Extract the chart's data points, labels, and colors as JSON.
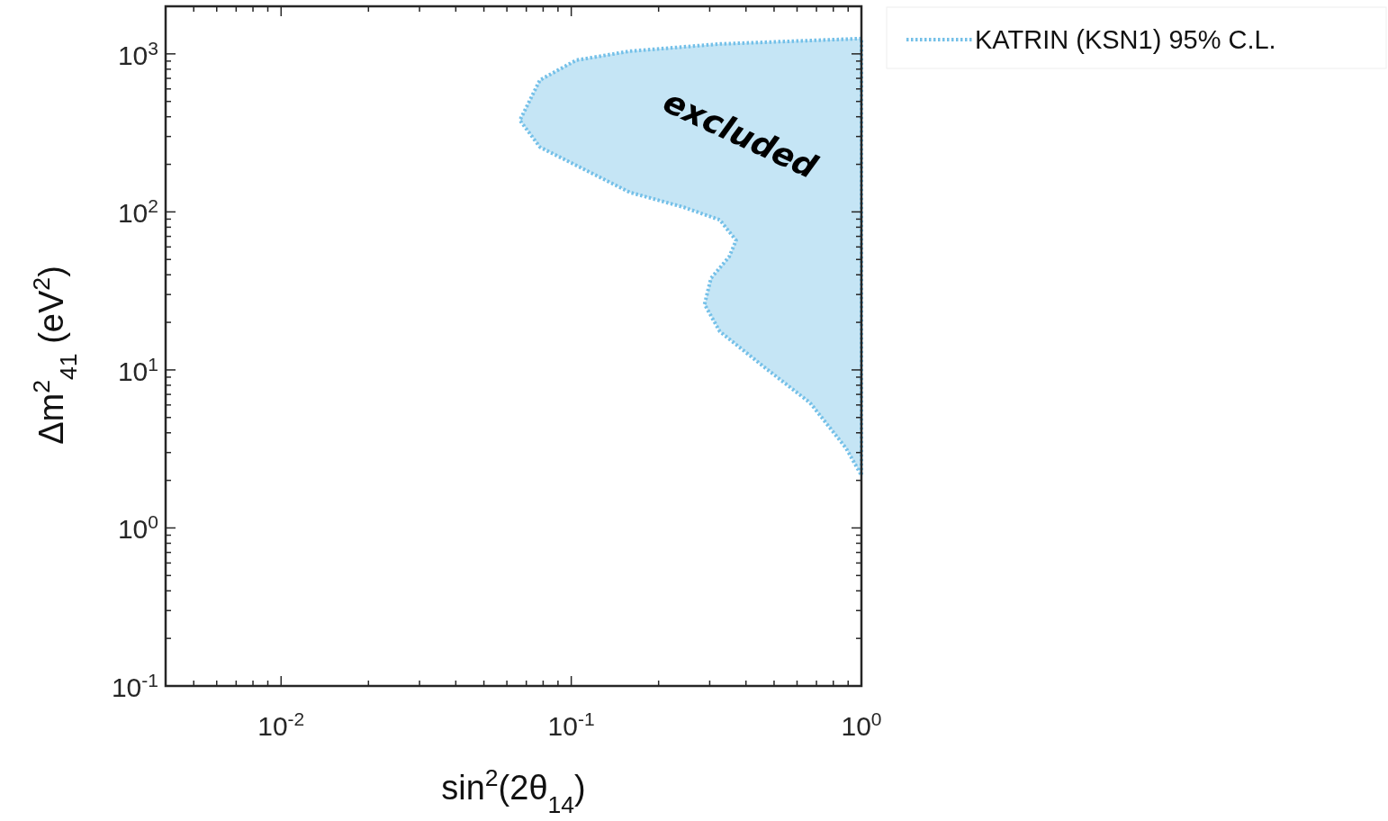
{
  "chart_data": {
    "type": "area",
    "xlabel": "sin$^{2}$(2θ$_{14}$)",
    "ylabel": "Δm$^{2}$$_{41}$ (eV$^{2}$)",
    "log": "xy",
    "xlim": [
      0.004,
      1
    ],
    "ylim": [
      0.1,
      2000
    ],
    "xticks": [
      {
        "value": 0.005,
        "label": null
      },
      {
        "value": 0.006,
        "label": null
      },
      {
        "value": 0.007,
        "label": null
      },
      {
        "value": 0.008,
        "label": null
      },
      {
        "value": 0.009,
        "label": null
      },
      {
        "value": 0.01,
        "label": "10$^{-2}$"
      },
      {
        "value": 0.02,
        "label": null
      },
      {
        "value": 0.03,
        "label": null
      },
      {
        "value": 0.04,
        "label": null
      },
      {
        "value": 0.05,
        "label": null
      },
      {
        "value": 0.06,
        "label": null
      },
      {
        "value": 0.07,
        "label": null
      },
      {
        "value": 0.08,
        "label": null
      },
      {
        "value": 0.09,
        "label": null
      },
      {
        "value": 0.1,
        "label": "10$^{-1}$"
      },
      {
        "value": 0.2,
        "label": null
      },
      {
        "value": 0.3,
        "label": null
      },
      {
        "value": 0.4,
        "label": null
      },
      {
        "value": 0.5,
        "label": null
      },
      {
        "value": 0.6,
        "label": null
      },
      {
        "value": 0.7,
        "label": null
      },
      {
        "value": 0.8,
        "label": null
      },
      {
        "value": 0.9,
        "label": null
      },
      {
        "value": 1,
        "label": "10$^{0}$"
      }
    ],
    "yticks": [
      {
        "value": 0.1,
        "label": "10$^{-1}$"
      },
      {
        "value": 0.2,
        "label": null
      },
      {
        "value": 0.3,
        "label": null
      },
      {
        "value": 0.4,
        "label": null
      },
      {
        "value": 0.5,
        "label": null
      },
      {
        "value": 0.6,
        "label": null
      },
      {
        "value": 0.7,
        "label": null
      },
      {
        "value": 0.8,
        "label": null
      },
      {
        "value": 0.9,
        "label": null
      },
      {
        "value": 1,
        "label": "10$^{0}$"
      },
      {
        "value": 2,
        "label": null
      },
      {
        "value": 3,
        "label": null
      },
      {
        "value": 4,
        "label": null
      },
      {
        "value": 5,
        "label": null
      },
      {
        "value": 6,
        "label": null
      },
      {
        "value": 7,
        "label": null
      },
      {
        "value": 8,
        "label": null
      },
      {
        "value": 9,
        "label": null
      },
      {
        "value": 10,
        "label": "10$^{1}$"
      },
      {
        "value": 20,
        "label": null
      },
      {
        "value": 30,
        "label": null
      },
      {
        "value": 40,
        "label": null
      },
      {
        "value": 50,
        "label": null
      },
      {
        "value": 60,
        "label": null
      },
      {
        "value": 70,
        "label": null
      },
      {
        "value": 80,
        "label": null
      },
      {
        "value": 90,
        "label": null
      },
      {
        "value": 100,
        "label": "10$^{2}$"
      },
      {
        "value": 200,
        "label": null
      },
      {
        "value": 300,
        "label": null
      },
      {
        "value": 400,
        "label": null
      },
      {
        "value": 500,
        "label": null
      },
      {
        "value": 600,
        "label": null
      },
      {
        "value": 700,
        "label": null
      },
      {
        "value": 800,
        "label": null
      },
      {
        "value": 900,
        "label": null
      },
      {
        "value": 1000,
        "label": "10$^{3}$"
      }
    ],
    "grid": false,
    "legend": "top right",
    "line_style": "dotted",
    "annotations": [
      "excluded"
    ],
    "series": [
      {
        "name": "KATRIN (KSN1) 95% C.L.",
        "color": "#74c0e8",
        "x": [
          1,
          0.325,
          0.159,
          0.104,
          0.078,
          0.0665,
          0.078,
          0.104,
          0.159,
          0.244,
          0.325,
          0.37,
          0.35,
          0.303,
          0.288,
          0.325,
          0.466,
          0.665,
          0.885,
          1
        ],
        "values": [
          1250,
          1155,
          1040,
          912,
          683,
          380,
          257,
          197,
          133,
          107,
          89,
          66,
          52,
          38,
          26,
          17.5,
          10.3,
          6.2,
          3.2,
          2.15
        ]
      }
    ]
  }
}
